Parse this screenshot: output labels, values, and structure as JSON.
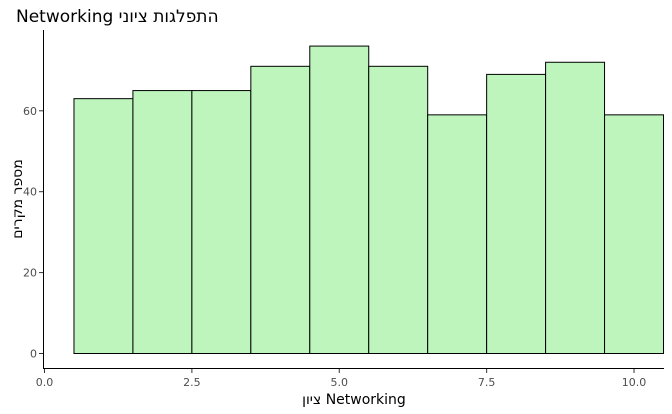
{
  "chart_data": {
    "type": "bar",
    "title": "התפלגות ציוני Networking",
    "xlabel": "ציון Networking",
    "ylabel": "מספר מקרים",
    "x": [
      1,
      2,
      3,
      4,
      5,
      6,
      7,
      8,
      9,
      10
    ],
    "values": [
      63,
      65,
      65,
      71,
      76,
      71,
      59,
      69,
      72,
      59
    ],
    "bin_width": 1,
    "xlim": [
      0,
      10.5
    ],
    "ylim": [
      0,
      78
    ],
    "x_ticks": [
      0,
      2.5,
      5,
      7.5,
      10
    ],
    "x_tick_labels": [
      "0.0",
      "2.5",
      "5.0",
      "7.5",
      "10.0"
    ],
    "y_ticks": [
      0,
      20,
      40,
      60
    ],
    "y_tick_labels": [
      "0",
      "20",
      "40",
      "60"
    ],
    "grid": false,
    "legend": "none",
    "colors": {
      "bar_fill": "#bdf5bd",
      "bar_stroke": "#000000",
      "axis": "#000000",
      "tick_label": "#4d4d4d"
    }
  }
}
